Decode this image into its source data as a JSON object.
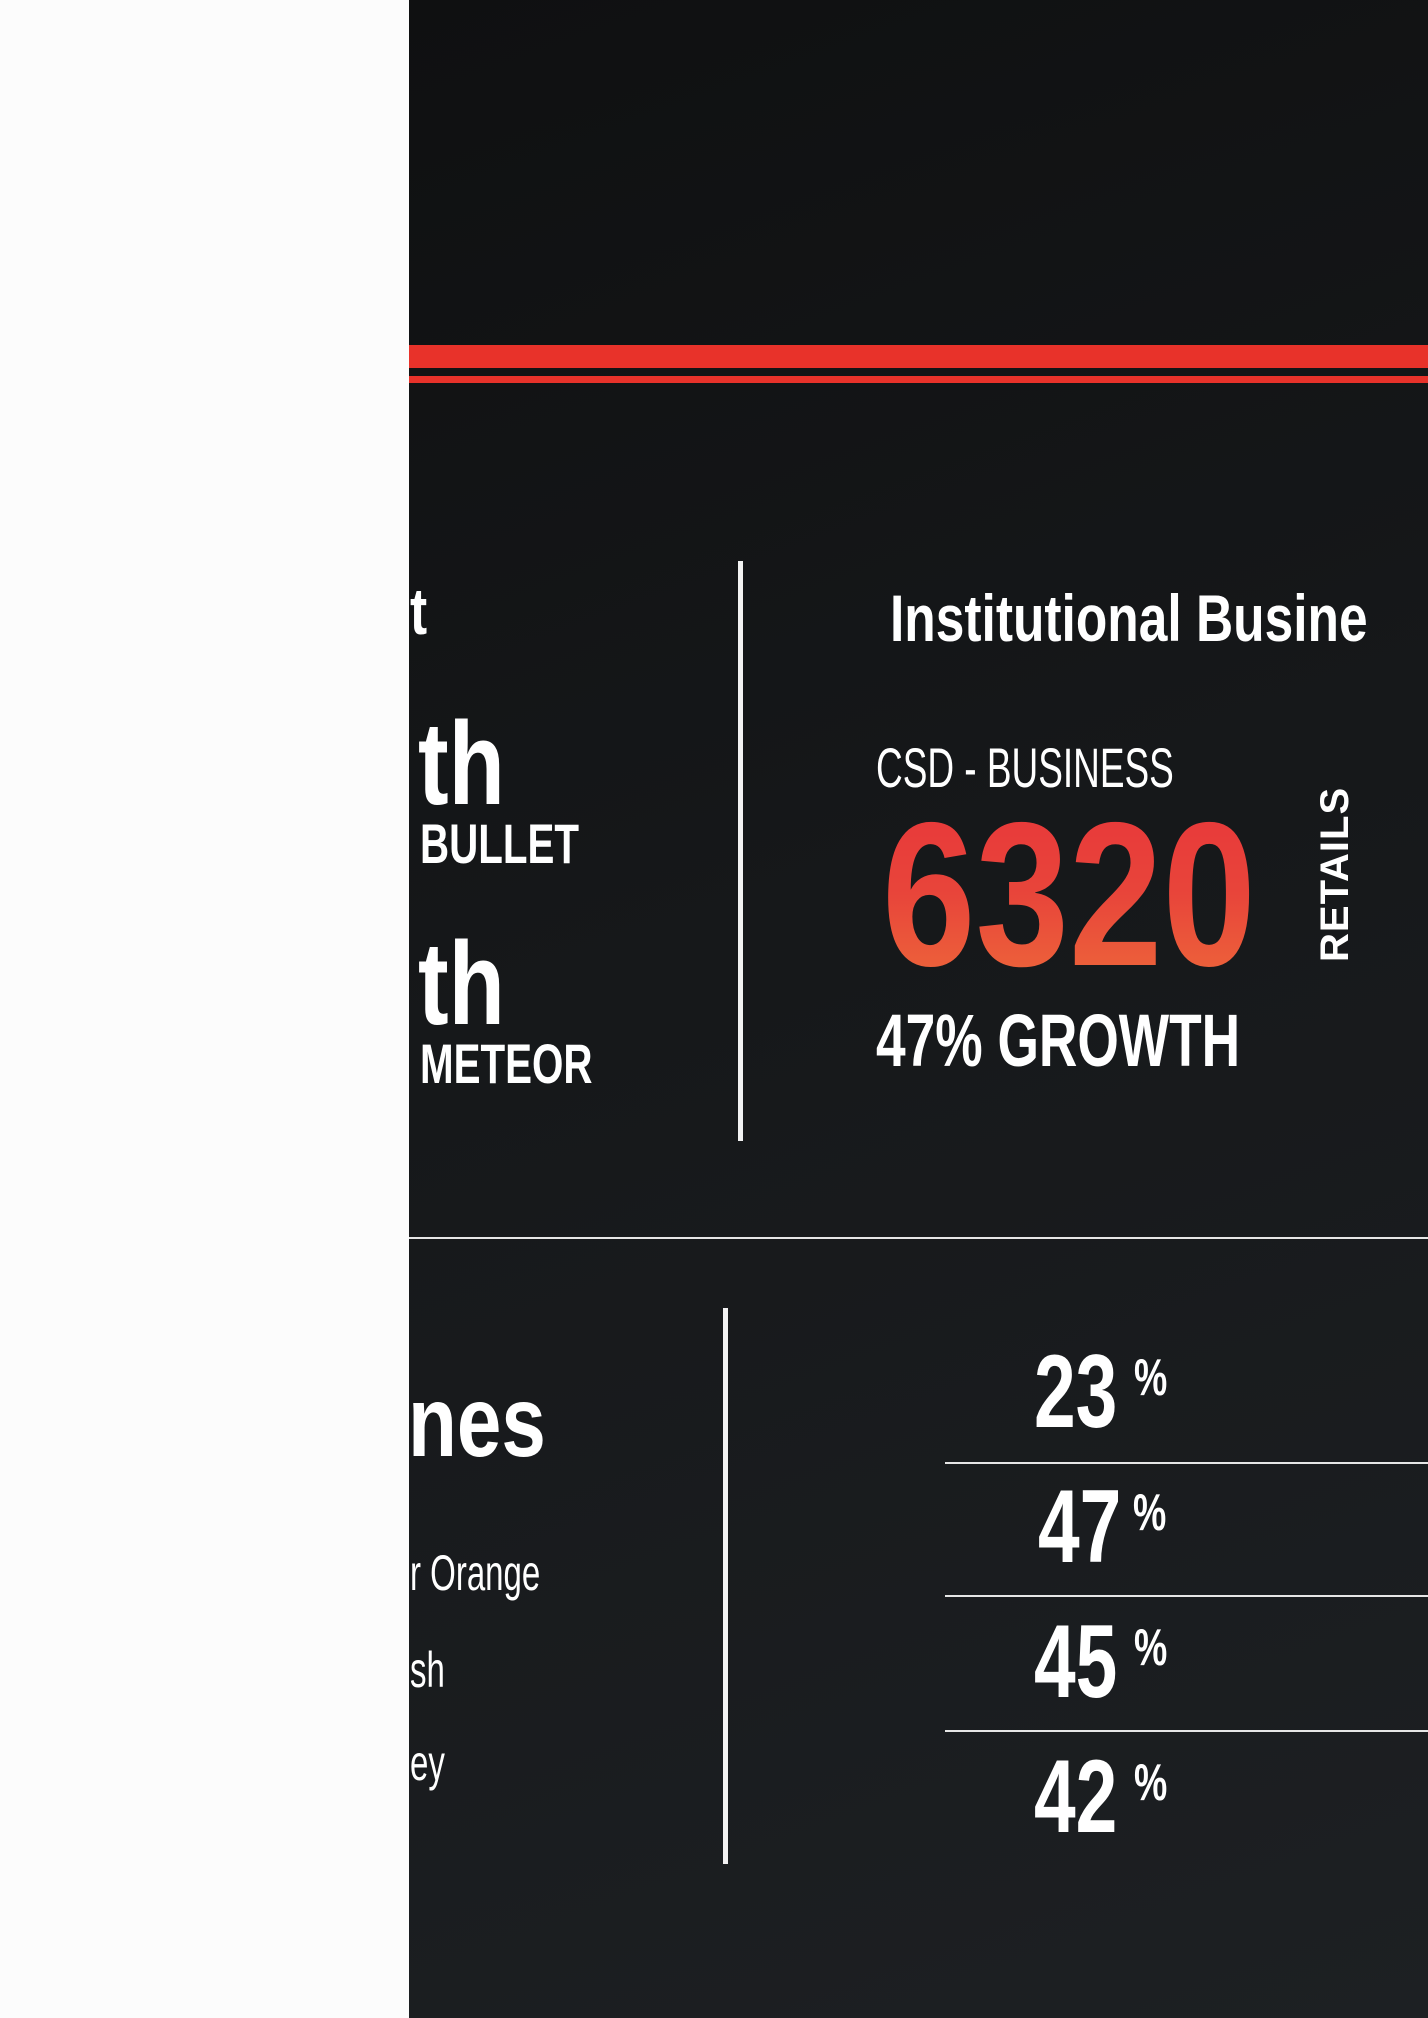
{
  "top_section": {
    "left_title_fragment": "t",
    "rank_items": [
      {
        "suffix": "th",
        "label": "BULLET"
      },
      {
        "suffix": "th",
        "label": "METEOR"
      }
    ],
    "institutional": {
      "title": "Institutional Busine",
      "category": "CSD - BUSINESS",
      "value": "6320",
      "unit": "RETAILS",
      "growth": "47% GROWTH"
    }
  },
  "bottom_section": {
    "title_fragment": "nes",
    "items": [
      "r Orange",
      "sh",
      "ey"
    ],
    "percentages": [
      "23",
      "47",
      "45",
      "42"
    ],
    "percent_sign": "%"
  },
  "colors": {
    "accent_red": "#e8322a",
    "gradient_orange": "#ee6a3a",
    "background": "#15171a"
  }
}
